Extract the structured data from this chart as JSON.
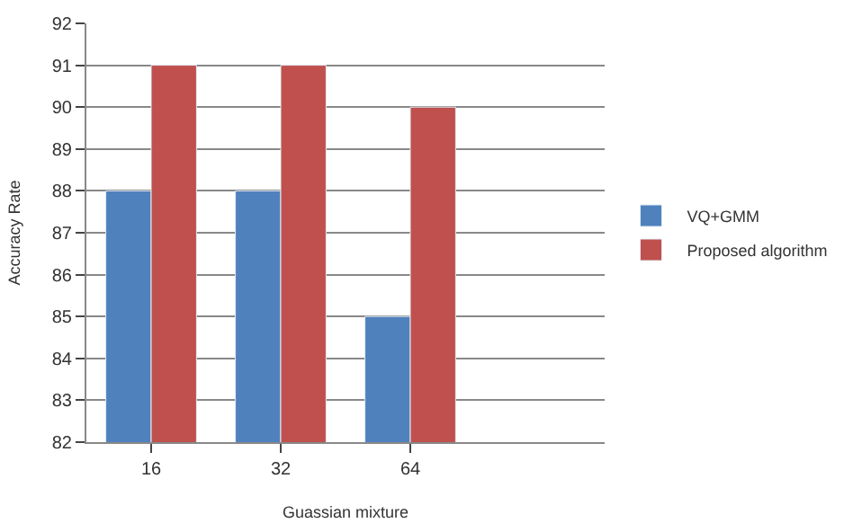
{
  "chart_data": {
    "type": "bar",
    "xlabel": "Guassian mixture",
    "ylabel": "Accuracy Rate",
    "categories": [
      "16",
      "32",
      "64",
      null
    ],
    "series": [
      {
        "name": "VQ+GMM",
        "color": "#4f81bd",
        "values": [
          88,
          88,
          85,
          null
        ]
      },
      {
        "name": "Proposed algorithm",
        "color": "#c0504d",
        "values": [
          91,
          91,
          90,
          null
        ]
      }
    ],
    "ylim": [
      82,
      92
    ],
    "yticks": [
      82,
      83,
      84,
      85,
      86,
      87,
      88,
      89,
      90,
      91,
      92
    ],
    "grid": "y",
    "legend": "right"
  }
}
